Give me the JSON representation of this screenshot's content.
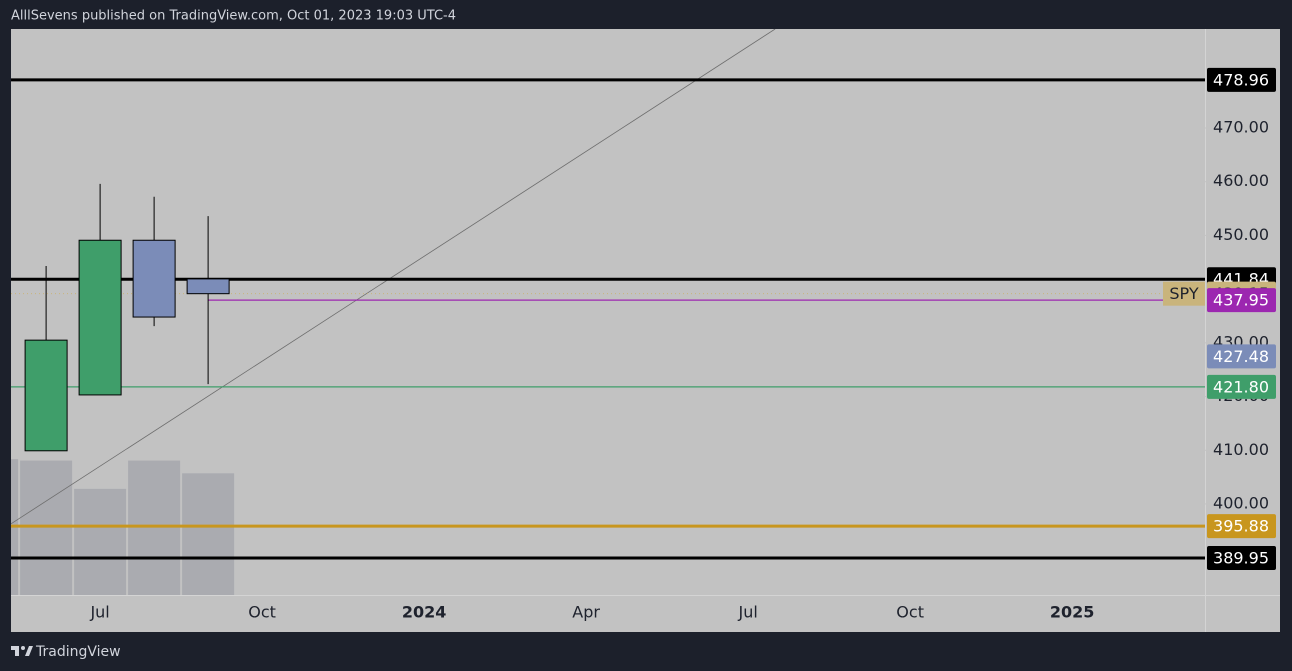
{
  "header": {
    "text": "AlllSevens published on TradingView.com, Oct 01, 2023 19:03 UTC-4"
  },
  "footer": {
    "brand": "TradingView"
  },
  "chart_data": {
    "type": "candlestick",
    "symbol": "SPY",
    "x": [
      0,
      1,
      2,
      3
    ],
    "open": [
      409.9,
      420.3,
      449.1,
      441.9
    ],
    "high": [
      444.3,
      459.6,
      457.2,
      453.6
    ],
    "low": [
      409.9,
      420.3,
      433.1,
      422.3
    ],
    "close": [
      430.5,
      449.1,
      434.8,
      439.15
    ],
    "up_color": "#3f9e6a",
    "down_color": "#7b8cb8",
    "volume": {
      "x": [
        -1,
        0,
        1,
        2,
        3
      ],
      "values": [
        96,
        95,
        75,
        95,
        86
      ],
      "ylim": [
        0,
        400
      ],
      "color": "#a6a7ad"
    },
    "xlim": [
      -0.65,
      21.46
    ],
    "xticks": [
      {
        "value": 1,
        "label": "Jul"
      },
      {
        "value": 4,
        "label": "Oct"
      },
      {
        "value": 7,
        "label": "2024"
      },
      {
        "value": 10,
        "label": "Apr"
      },
      {
        "value": 13,
        "label": "Jul"
      },
      {
        "value": 16,
        "label": "Oct"
      },
      {
        "value": 19,
        "label": "2025"
      }
    ],
    "ylim": [
      383.05,
      488.43
    ],
    "yticks": [
      {
        "value": 400,
        "label": "400.00"
      },
      {
        "value": 410,
        "label": "410.00"
      },
      {
        "value": 420,
        "label": "420.00"
      },
      {
        "value": 430,
        "label": "430.00"
      },
      {
        "value": 450,
        "label": "450.00"
      },
      {
        "value": 460,
        "label": "460.00"
      },
      {
        "value": 470,
        "label": "470.00"
      }
    ],
    "levels": {
      "values": [
        478.96,
        441.84,
        439.15,
        437.95,
        427.48,
        421.8,
        395.88,
        389.95
      ],
      "value_labels": [
        "478.96",
        "441.84",
        "439.15",
        "437.95",
        "427.48",
        "421.80",
        "395.88",
        "389.95"
      ],
      "colors": [
        "#000000",
        "#000000",
        "#c9b47c",
        "#9c27b0",
        "#7b8cb8",
        "#3f9e6a",
        "#c8961e",
        "#000000"
      ],
      "styles": [
        "thick",
        "thick",
        "dotted",
        "thin",
        "none",
        "thin",
        "thick",
        "thick"
      ]
    },
    "trendline": {
      "x": [
        -0.65,
        13.5
      ],
      "y": [
        396.3,
        488.43
      ],
      "color": "#6e6e6e"
    }
  }
}
